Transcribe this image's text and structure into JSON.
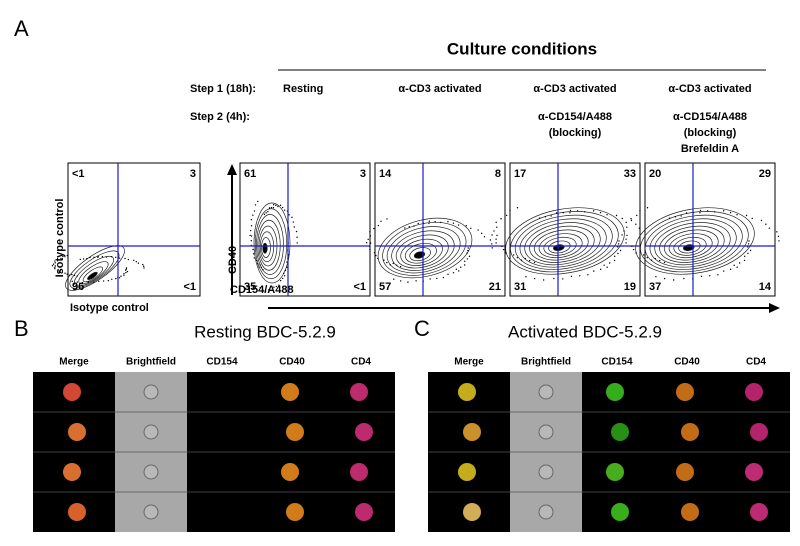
{
  "panel_a": {
    "label": "A",
    "title": "Culture conditions",
    "step_labels": [
      "Step 1 (18h):",
      "Step 2 (4h):"
    ],
    "conditions": [
      {
        "step1": "Resting",
        "step2": []
      },
      {
        "step1": "α-CD3 activated",
        "step2": []
      },
      {
        "step1": "α-CD3 activated",
        "step2": [
          "α-CD154/A488",
          "(blocking)"
        ]
      },
      {
        "step1": "α-CD3 activated",
        "step2": [
          "α-CD154/A488",
          "(blocking)",
          "Brefeldin A"
        ]
      }
    ],
    "isotype_plot": {
      "x_label": "Isotype control",
      "y_label": "Isotype control",
      "quadrants": [
        "<1",
        "3",
        "96",
        "<1"
      ]
    },
    "plots": [
      {
        "quadrants": [
          "61",
          "3",
          "35",
          "<1"
        ]
      },
      {
        "quadrants": [
          "14",
          "8",
          "57",
          "21"
        ]
      },
      {
        "quadrants": [
          "17",
          "33",
          "31",
          "19"
        ]
      },
      {
        "quadrants": [
          "20",
          "29",
          "37",
          "14"
        ]
      }
    ],
    "x_label": "CD154/A488",
    "y_label": "CD40"
  },
  "panel_b": {
    "label": "B",
    "title": "Resting BDC-5.2.9",
    "columns": [
      "Merge",
      "Brightfield",
      "CD154",
      "CD40",
      "CD4"
    ]
  },
  "panel_c": {
    "label": "C",
    "title": "Activated BDC-5.2.9",
    "columns": [
      "Merge",
      "Brightfield",
      "CD154",
      "CD40",
      "CD4"
    ]
  }
}
